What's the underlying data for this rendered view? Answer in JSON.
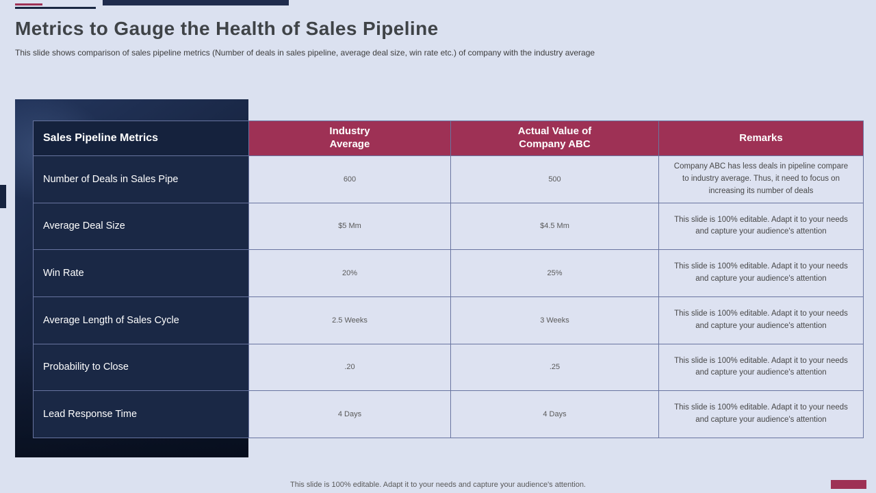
{
  "slide": {
    "title": "Metrics to Gauge the Health of Sales Pipeline",
    "subtitle": "This slide shows comparison of sales pipeline metrics (Number of deals in sales pipeline, average deal size, win rate etc.) of company with the industry average",
    "footer_note": "This slide is 100% editable.  Adapt it to your needs and capture your audience's attention."
  },
  "table": {
    "headers": {
      "metric": "Sales Pipeline Metrics",
      "industry": "Industry Average",
      "actual": "Actual Value of Company ABC",
      "remarks": "Remarks"
    },
    "rows": [
      {
        "metric": "Number of Deals in Sales Pipe",
        "industry": "600",
        "actual": "500",
        "remarks": "Company ABC has less deals in pipeline compare to industry average.  Thus, it need to focus on increasing its number of deals"
      },
      {
        "metric": "Average Deal Size",
        "industry": "$5 Mm",
        "actual": "$4.5 Mm",
        "remarks": "This slide is 100% editable. Adapt it to your needs and capture your audience's attention"
      },
      {
        "metric": "Win Rate",
        "industry": "20%",
        "actual": "25%",
        "remarks": "This slide is 100% editable. Adapt it to your needs and capture your audience's attention"
      },
      {
        "metric": "Average Length of Sales Cycle",
        "industry": "2.5 Weeks",
        "actual": "3 Weeks",
        "remarks": "This slide is 100% editable. Adapt it to your needs and capture your audience's attention"
      },
      {
        "metric": "Probability to Close",
        "industry": ".20",
        "actual": ".25",
        "remarks": "This slide is 100% editable. Adapt it to your needs and capture your audience's attention"
      },
      {
        "metric": "Lead Response Time",
        "industry": "4 Days",
        "actual": "4 Days",
        "remarks": "This slide is 100% editable. Adapt it to your needs and capture your audience's attention"
      }
    ]
  },
  "colors": {
    "background": "#dbe1f0",
    "header_maroon": "#9e3155",
    "navy": "#1a2742",
    "cell_background": "#dde2f1",
    "grid_line": "#6874a0",
    "title_text": "#3f4347",
    "body_text": "#595959"
  }
}
